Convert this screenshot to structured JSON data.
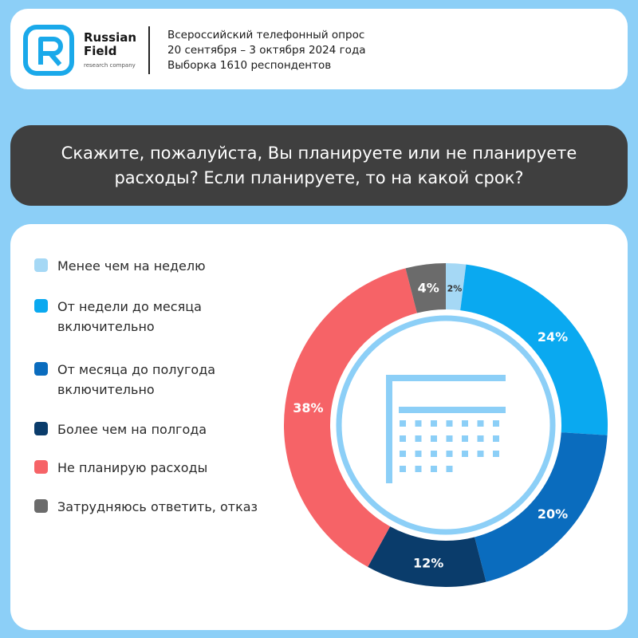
{
  "brand": {
    "name_line1": "Russian",
    "name_line2": "Field",
    "tagline": "research company",
    "color": "#1aa9ea"
  },
  "survey": {
    "line1": "Всероссийский телефонный опрос",
    "line2": "20 сентября – 3 октября 2024 года",
    "line3": "Выборка 1610 респондентов"
  },
  "question": "Скажите, пожалуйста, Вы планируете или не планируете расходы? Если планируете, то на какой срок?",
  "center_icon": "calendar-icon",
  "chart_data": {
    "type": "pie",
    "variant": "donut",
    "start_angle_deg": 0,
    "direction": "clockwise",
    "unit": "%",
    "categories": [
      "Менее чем на неделю",
      "От недели до месяца включительно",
      "От месяца до полугода включительно",
      "Более чем на полгода",
      "Не планирую расходы",
      "Затрудняюсь ответить,  отказ"
    ],
    "values": [
      2,
      24,
      20,
      12,
      38,
      4
    ],
    "labels": [
      "2%",
      "24%",
      "20%",
      "12%",
      "38%",
      "4%"
    ],
    "colors": [
      "#a5d8f5",
      "#0aa9f0",
      "#0a6cbe",
      "#0a3c6b",
      "#f66367",
      "#6b6b6b"
    ],
    "label_colors": [
      "#333333",
      "#ffffff",
      "#ffffff",
      "#ffffff",
      "#ffffff",
      "#ffffff"
    ],
    "legend_position": "left"
  }
}
